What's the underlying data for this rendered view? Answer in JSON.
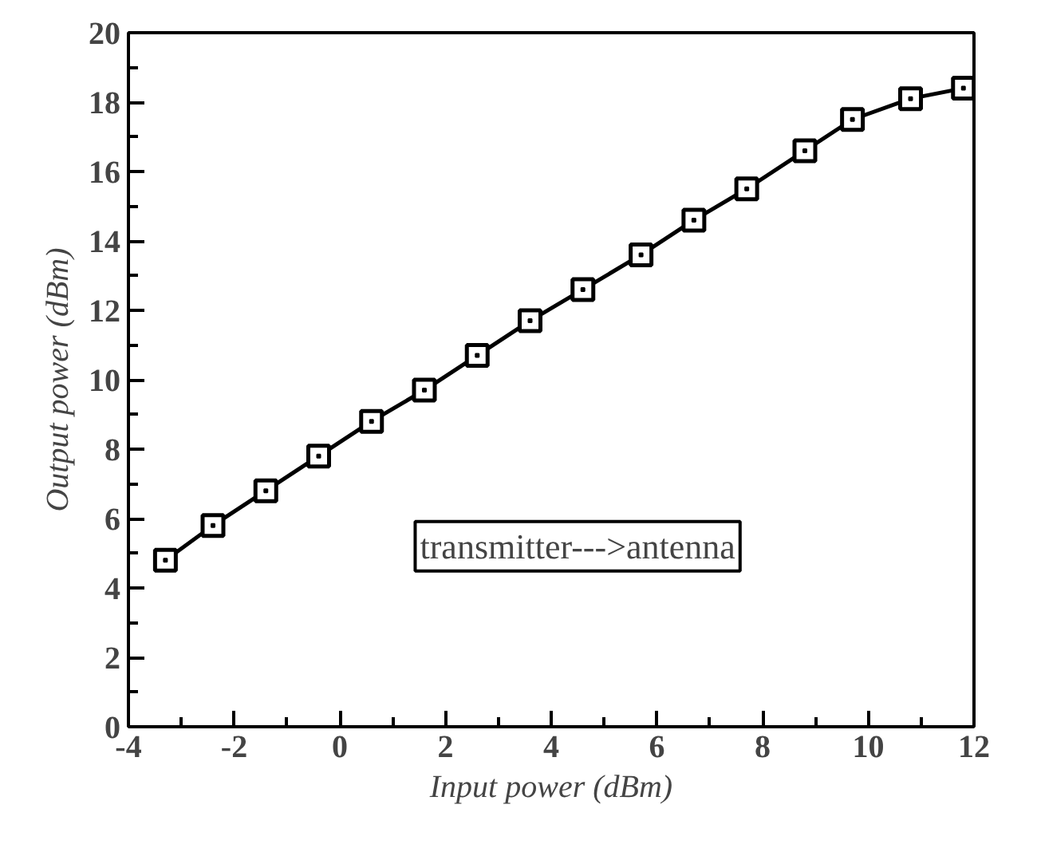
{
  "chart_data": {
    "type": "line",
    "xlabel": "Input power (dBm)",
    "ylabel": "Output power (dBm)",
    "x": [
      -3.3,
      -2.4,
      -1.4,
      -0.4,
      0.6,
      1.6,
      2.6,
      3.6,
      4.6,
      5.7,
      6.7,
      7.7,
      8.8,
      9.7,
      10.8,
      11.8
    ],
    "series": [
      {
        "color": "#000000",
        "values": [
          4.8,
          5.8,
          6.8,
          7.8,
          8.8,
          9.7,
          10.7,
          11.7,
          12.6,
          13.6,
          14.6,
          15.5,
          16.6,
          17.5,
          18.1,
          18.4
        ]
      }
    ],
    "xlim": [
      -4,
      12
    ],
    "xticks": [
      {
        "value": -4,
        "label": "-4"
      },
      {
        "value": -2,
        "label": "-2"
      },
      0,
      2,
      4,
      6,
      8,
      10,
      12
    ],
    "ylim": [
      0,
      20
    ],
    "yticks": [
      0,
      2,
      4,
      6,
      8,
      10,
      12,
      14,
      16,
      18,
      20
    ],
    "marker": "square",
    "grid": false,
    "annotations": [
      "transmitter--->antenna"
    ]
  }
}
